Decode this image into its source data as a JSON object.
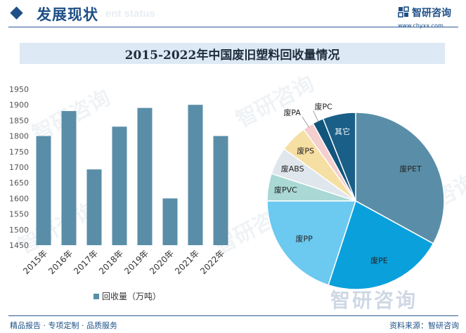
{
  "header": {
    "title": "发展现状",
    "ghost_text": "ent status",
    "brand": "智研咨询",
    "site": "www.chyxx.com"
  },
  "watermark": "智研咨询",
  "footer": {
    "left": "精品报告 · 专项定制 · 品质服务",
    "right": "资料来源：智研咨询"
  },
  "colors": {
    "bar": "#5a8ea8",
    "primary": "#1e4f86"
  },
  "chart_data": [
    {
      "type": "bar",
      "title": "2015-2022年中国废旧塑料回收量情况",
      "categories": [
        "2015年",
        "2016年",
        "2017年",
        "2018年",
        "2019年",
        "2020年",
        "2021年",
        "2022年"
      ],
      "series": [
        {
          "name": "回收量（万吨）",
          "values": [
            1800,
            1880,
            1693,
            1830,
            1890,
            1600,
            1900,
            1800
          ]
        }
      ],
      "ylim": [
        1450,
        1950
      ],
      "yticks": [
        1450,
        1500,
        1550,
        1600,
        1650,
        1700,
        1750,
        1800,
        1850,
        1900,
        1950
      ],
      "legend": "bottom",
      "grid": false
    },
    {
      "type": "pie",
      "slices": [
        {
          "label": "废PET",
          "value": 33,
          "color": "#5a8ea8"
        },
        {
          "label": "废PE",
          "value": 22,
          "color": "#0aa0dc"
        },
        {
          "label": "废PP",
          "value": 20,
          "color": "#6cc9f0"
        },
        {
          "label": "废PVC",
          "value": 5,
          "color": "#a9d8d5"
        },
        {
          "label": "废ABS",
          "value": 5,
          "color": "#dfe6ec"
        },
        {
          "label": "废PS",
          "value": 5,
          "color": "#f6dfa2"
        },
        {
          "label": "废PA",
          "value": 2,
          "color": "#f5cece"
        },
        {
          "label": "废PC",
          "value": 2,
          "color": "#12557c"
        },
        {
          "label": "其它",
          "value": 6,
          "color": "#1a5f87"
        }
      ]
    }
  ]
}
